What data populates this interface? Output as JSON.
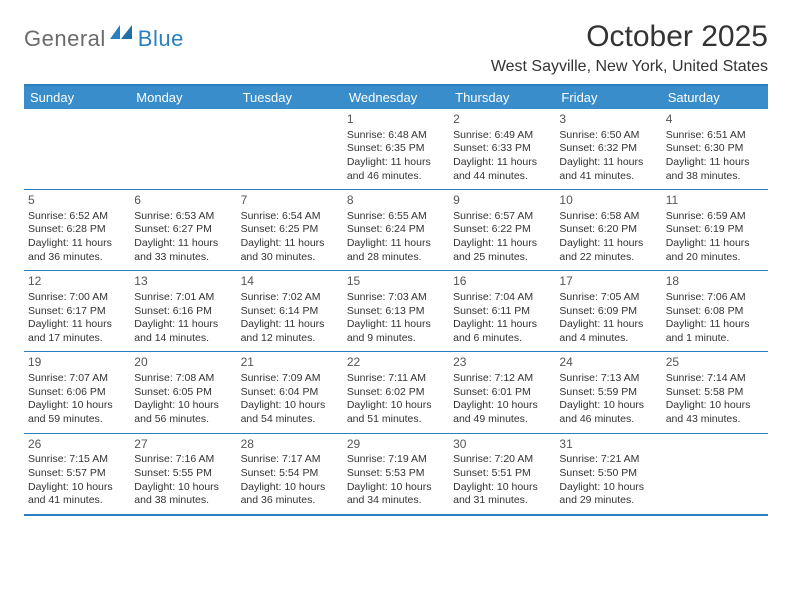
{
  "logo": {
    "general": "General",
    "blue": "Blue"
  },
  "title": "October 2025",
  "location": "West Sayville, New York, United States",
  "weekdays": [
    "Sunday",
    "Monday",
    "Tuesday",
    "Wednesday",
    "Thursday",
    "Friday",
    "Saturday"
  ],
  "colors": {
    "header_bg": "#3a8dcb",
    "border": "#2a7fc0",
    "logo_gray": "#6b6b6b",
    "logo_blue": "#2a7fc0"
  },
  "weeks": [
    [
      null,
      null,
      null,
      {
        "n": "1",
        "sr": "Sunrise: 6:48 AM",
        "ss": "Sunset: 6:35 PM",
        "dl": "Daylight: 11 hours and 46 minutes."
      },
      {
        "n": "2",
        "sr": "Sunrise: 6:49 AM",
        "ss": "Sunset: 6:33 PM",
        "dl": "Daylight: 11 hours and 44 minutes."
      },
      {
        "n": "3",
        "sr": "Sunrise: 6:50 AM",
        "ss": "Sunset: 6:32 PM",
        "dl": "Daylight: 11 hours and 41 minutes."
      },
      {
        "n": "4",
        "sr": "Sunrise: 6:51 AM",
        "ss": "Sunset: 6:30 PM",
        "dl": "Daylight: 11 hours and 38 minutes."
      }
    ],
    [
      {
        "n": "5",
        "sr": "Sunrise: 6:52 AM",
        "ss": "Sunset: 6:28 PM",
        "dl": "Daylight: 11 hours and 36 minutes."
      },
      {
        "n": "6",
        "sr": "Sunrise: 6:53 AM",
        "ss": "Sunset: 6:27 PM",
        "dl": "Daylight: 11 hours and 33 minutes."
      },
      {
        "n": "7",
        "sr": "Sunrise: 6:54 AM",
        "ss": "Sunset: 6:25 PM",
        "dl": "Daylight: 11 hours and 30 minutes."
      },
      {
        "n": "8",
        "sr": "Sunrise: 6:55 AM",
        "ss": "Sunset: 6:24 PM",
        "dl": "Daylight: 11 hours and 28 minutes."
      },
      {
        "n": "9",
        "sr": "Sunrise: 6:57 AM",
        "ss": "Sunset: 6:22 PM",
        "dl": "Daylight: 11 hours and 25 minutes."
      },
      {
        "n": "10",
        "sr": "Sunrise: 6:58 AM",
        "ss": "Sunset: 6:20 PM",
        "dl": "Daylight: 11 hours and 22 minutes."
      },
      {
        "n": "11",
        "sr": "Sunrise: 6:59 AM",
        "ss": "Sunset: 6:19 PM",
        "dl": "Daylight: 11 hours and 20 minutes."
      }
    ],
    [
      {
        "n": "12",
        "sr": "Sunrise: 7:00 AM",
        "ss": "Sunset: 6:17 PM",
        "dl": "Daylight: 11 hours and 17 minutes."
      },
      {
        "n": "13",
        "sr": "Sunrise: 7:01 AM",
        "ss": "Sunset: 6:16 PM",
        "dl": "Daylight: 11 hours and 14 minutes."
      },
      {
        "n": "14",
        "sr": "Sunrise: 7:02 AM",
        "ss": "Sunset: 6:14 PM",
        "dl": "Daylight: 11 hours and 12 minutes."
      },
      {
        "n": "15",
        "sr": "Sunrise: 7:03 AM",
        "ss": "Sunset: 6:13 PM",
        "dl": "Daylight: 11 hours and 9 minutes."
      },
      {
        "n": "16",
        "sr": "Sunrise: 7:04 AM",
        "ss": "Sunset: 6:11 PM",
        "dl": "Daylight: 11 hours and 6 minutes."
      },
      {
        "n": "17",
        "sr": "Sunrise: 7:05 AM",
        "ss": "Sunset: 6:09 PM",
        "dl": "Daylight: 11 hours and 4 minutes."
      },
      {
        "n": "18",
        "sr": "Sunrise: 7:06 AM",
        "ss": "Sunset: 6:08 PM",
        "dl": "Daylight: 11 hours and 1 minute."
      }
    ],
    [
      {
        "n": "19",
        "sr": "Sunrise: 7:07 AM",
        "ss": "Sunset: 6:06 PM",
        "dl": "Daylight: 10 hours and 59 minutes."
      },
      {
        "n": "20",
        "sr": "Sunrise: 7:08 AM",
        "ss": "Sunset: 6:05 PM",
        "dl": "Daylight: 10 hours and 56 minutes."
      },
      {
        "n": "21",
        "sr": "Sunrise: 7:09 AM",
        "ss": "Sunset: 6:04 PM",
        "dl": "Daylight: 10 hours and 54 minutes."
      },
      {
        "n": "22",
        "sr": "Sunrise: 7:11 AM",
        "ss": "Sunset: 6:02 PM",
        "dl": "Daylight: 10 hours and 51 minutes."
      },
      {
        "n": "23",
        "sr": "Sunrise: 7:12 AM",
        "ss": "Sunset: 6:01 PM",
        "dl": "Daylight: 10 hours and 49 minutes."
      },
      {
        "n": "24",
        "sr": "Sunrise: 7:13 AM",
        "ss": "Sunset: 5:59 PM",
        "dl": "Daylight: 10 hours and 46 minutes."
      },
      {
        "n": "25",
        "sr": "Sunrise: 7:14 AM",
        "ss": "Sunset: 5:58 PM",
        "dl": "Daylight: 10 hours and 43 minutes."
      }
    ],
    [
      {
        "n": "26",
        "sr": "Sunrise: 7:15 AM",
        "ss": "Sunset: 5:57 PM",
        "dl": "Daylight: 10 hours and 41 minutes."
      },
      {
        "n": "27",
        "sr": "Sunrise: 7:16 AM",
        "ss": "Sunset: 5:55 PM",
        "dl": "Daylight: 10 hours and 38 minutes."
      },
      {
        "n": "28",
        "sr": "Sunrise: 7:17 AM",
        "ss": "Sunset: 5:54 PM",
        "dl": "Daylight: 10 hours and 36 minutes."
      },
      {
        "n": "29",
        "sr": "Sunrise: 7:19 AM",
        "ss": "Sunset: 5:53 PM",
        "dl": "Daylight: 10 hours and 34 minutes."
      },
      {
        "n": "30",
        "sr": "Sunrise: 7:20 AM",
        "ss": "Sunset: 5:51 PM",
        "dl": "Daylight: 10 hours and 31 minutes."
      },
      {
        "n": "31",
        "sr": "Sunrise: 7:21 AM",
        "ss": "Sunset: 5:50 PM",
        "dl": "Daylight: 10 hours and 29 minutes."
      },
      null
    ]
  ]
}
